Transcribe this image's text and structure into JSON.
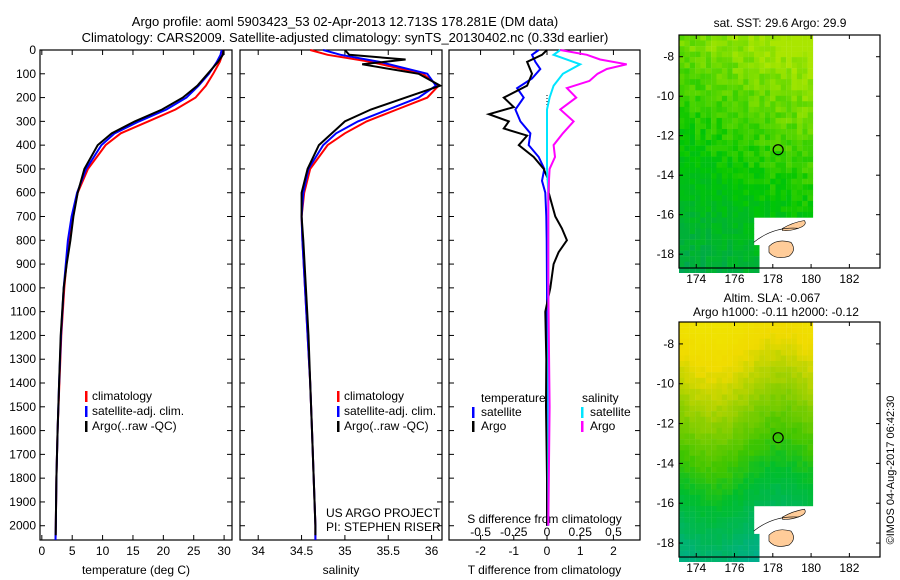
{
  "header": {
    "title_line1": "Argo profile: aoml 5903423_53 02-Apr-2013 12.713S 178.281E (DM data)",
    "title_line2": "Climatology: CARS2009. Satellite-adjusted climatology: synTS_20130402.nc (0.33d earlier)"
  },
  "footer": {
    "timestamp": "©IMOS 04-Aug-2017 06:42:30"
  },
  "colors": {
    "climatology": "#ff0000",
    "satellite": "#0000ff",
    "argo": "#000000",
    "sal_satellite": "#00e5ff",
    "sal_argo": "#ff00ff",
    "land": "#ffcc99"
  },
  "chart_data": [
    {
      "type": "line",
      "name": "temperature-profile",
      "xlabel": "temperature (deg C)",
      "ylabel": "",
      "xlim": [
        -0.3,
        31.3
      ],
      "ylim": [
        2060,
        0
      ],
      "xticks": [
        0,
        5,
        10,
        15,
        20,
        25,
        30
      ],
      "yticks": [
        0,
        100,
        200,
        300,
        400,
        500,
        600,
        700,
        800,
        900,
        1000,
        1100,
        1200,
        1300,
        1400,
        1500,
        1600,
        1700,
        1800,
        1900,
        2000
      ],
      "legend": [
        "climatology",
        "satellite-adj. clim.",
        "Argo(..raw -QC)"
      ],
      "legend_position": "lower-center",
      "series": [
        {
          "name": "climatology",
          "color": "#ff0000",
          "depth": [
            0,
            20,
            50,
            100,
            150,
            200,
            250,
            300,
            350,
            400,
            500,
            600,
            700,
            800,
            1000,
            1200,
            1400,
            1600,
            1800,
            2000,
            2060
          ],
          "values": [
            29.9,
            29.7,
            29.3,
            28.2,
            27.0,
            25.3,
            22.0,
            17.5,
            13.0,
            10.5,
            7.6,
            5.9,
            5.0,
            4.4,
            3.7,
            3.2,
            2.9,
            2.6,
            2.4,
            2.3,
            2.25
          ]
        },
        {
          "name": "satellite-adj. clim.",
          "color": "#0000ff",
          "depth": [
            0,
            20,
            50,
            100,
            150,
            200,
            250,
            300,
            350,
            400,
            500,
            600,
            700,
            800,
            1000,
            1200,
            1400,
            1600,
            1800,
            2000,
            2060
          ],
          "values": [
            29.6,
            29.4,
            28.8,
            27.5,
            25.8,
            23.8,
            20.5,
            16.0,
            12.0,
            9.8,
            7.3,
            5.8,
            4.9,
            4.3,
            3.6,
            3.15,
            2.85,
            2.6,
            2.4,
            2.3,
            2.25
          ]
        },
        {
          "name": "Argo(..raw -QC)",
          "color": "#000000",
          "depth": [
            0,
            20,
            50,
            100,
            150,
            200,
            250,
            300,
            350,
            400,
            500,
            600,
            700,
            800,
            900,
            1000,
            1200,
            1400,
            1600,
            1800,
            2000,
            2040
          ],
          "values": [
            29.9,
            29.8,
            29.0,
            27.3,
            25.6,
            23.2,
            19.8,
            15.3,
            11.5,
            9.2,
            7.0,
            5.9,
            5.2,
            4.7,
            4.1,
            3.6,
            3.1,
            2.85,
            2.6,
            2.4,
            2.3,
            2.28
          ]
        }
      ]
    },
    {
      "type": "line",
      "name": "salinity-profile",
      "xlabel": "salinity",
      "xlim": [
        33.79,
        36.12
      ],
      "ylim": [
        2060,
        0
      ],
      "xticks": [
        34,
        34.5,
        35,
        35.5,
        36
      ],
      "legend": [
        "climatology",
        "satellite-adj. clim.",
        "Argo(..raw -QC)"
      ],
      "annotation": [
        "US ARGO PROJECT",
        "PI: STEPHEN RISER"
      ],
      "series": [
        {
          "name": "climatology",
          "color": "#ff0000",
          "depth": [
            0,
            20,
            50,
            100,
            150,
            200,
            250,
            300,
            350,
            400,
            500,
            600,
            700,
            800,
            1000,
            1200,
            1400,
            1600,
            1800,
            2000,
            2060
          ],
          "values": [
            34.6,
            34.8,
            35.3,
            35.9,
            36.08,
            35.95,
            35.6,
            35.25,
            35.0,
            34.8,
            34.6,
            34.53,
            34.5,
            34.51,
            34.54,
            34.57,
            34.6,
            34.62,
            34.64,
            34.66,
            34.66
          ]
        },
        {
          "name": "satellite-adj. clim.",
          "color": "#0000ff",
          "depth": [
            0,
            20,
            50,
            100,
            150,
            200,
            250,
            300,
            350,
            400,
            500,
            600,
            700,
            800,
            1000,
            1200,
            1400,
            1600,
            1800,
            2000,
            2060
          ],
          "values": [
            34.75,
            34.95,
            35.4,
            35.95,
            36.05,
            35.85,
            35.5,
            35.15,
            34.9,
            34.75,
            34.58,
            34.52,
            34.5,
            34.51,
            34.54,
            34.57,
            34.6,
            34.62,
            34.64,
            34.66,
            34.66
          ]
        },
        {
          "name": "Argo(..raw -QC)",
          "color": "#000000",
          "depth": [
            0,
            20,
            40,
            60,
            100,
            150,
            200,
            250,
            300,
            350,
            400,
            500,
            600,
            700,
            800,
            1000,
            1200,
            1400,
            1600,
            1800,
            2000,
            2040
          ],
          "values": [
            35.0,
            35.05,
            35.7,
            35.2,
            35.85,
            36.1,
            35.7,
            35.3,
            35.0,
            34.85,
            34.7,
            34.57,
            34.5,
            34.5,
            34.52,
            34.55,
            34.58,
            34.6,
            34.62,
            34.64,
            34.66,
            34.66
          ]
        }
      ]
    },
    {
      "type": "line",
      "name": "difference-profile",
      "xlabel": "T difference from climatology",
      "xlabel2": "S difference from climatology",
      "xlim": [
        -2.95,
        2.8
      ],
      "ylim": [
        2060,
        0
      ],
      "xticks": [
        -2,
        -1,
        0,
        1,
        2
      ],
      "xticks2": [
        -0.5,
        -0.25,
        0,
        0.25,
        0.5
      ],
      "xticks2_labels": [
        "-0.5",
        "-0.25",
        "0",
        "0.25",
        "0.5"
      ],
      "legend_headers": [
        "temperature",
        "salinity"
      ],
      "legend": [
        "satellite",
        "Argo",
        "satellite",
        "Argo"
      ],
      "series": [
        {
          "name": "T satellite",
          "color": "#0000ff",
          "units": "T",
          "depth": [
            0,
            20,
            50,
            80,
            120,
            160,
            200,
            250,
            300,
            350,
            400,
            450,
            500,
            550,
            600,
            700,
            800,
            1000,
            1500,
            2000
          ],
          "values": [
            -0.25,
            -0.45,
            -0.35,
            -0.2,
            -0.45,
            -0.9,
            -0.7,
            -0.95,
            -0.8,
            -0.5,
            -0.55,
            -0.25,
            -0.08,
            -0.15,
            -0.05,
            -0.02,
            -0.01,
            0,
            0,
            0
          ]
        },
        {
          "name": "T Argo",
          "color": "#000000",
          "units": "T",
          "depth": [
            0,
            20,
            50,
            100,
            150,
            200,
            240,
            270,
            300,
            330,
            360,
            400,
            450,
            500,
            550,
            600,
            650,
            700,
            750,
            800,
            850,
            900,
            1000,
            1100,
            1300,
            1500,
            1800,
            2000
          ],
          "values": [
            0,
            -0.15,
            -0.6,
            -0.45,
            -0.6,
            -1.3,
            -1.0,
            -1.75,
            -1.15,
            -1.3,
            -0.6,
            -0.85,
            -0.4,
            -0.1,
            0.05,
            0.05,
            0.15,
            0.25,
            0.45,
            0.6,
            0.35,
            0.2,
            0.1,
            -0.05,
            -0.02,
            -0.03,
            0,
            0
          ]
        },
        {
          "name": "S satellite",
          "color": "#00e5ff",
          "units": "S",
          "depth": [
            0,
            20,
            60,
            100,
            150,
            200,
            250,
            300,
            400,
            500,
            600,
            800,
            1000,
            1500,
            2000
          ],
          "values": [
            0.1,
            0.05,
            0.25,
            0.12,
            0.05,
            0.02,
            0.0,
            0.0,
            0.0,
            0.0,
            0.01,
            0.01,
            0.01,
            0.01,
            0.01
          ]
        },
        {
          "name": "S Argo",
          "color": "#ff00ff",
          "units": "S",
          "depth": [
            0,
            20,
            40,
            60,
            80,
            100,
            130,
            160,
            200,
            250,
            300,
            350,
            400,
            450,
            500,
            600,
            800,
            1000,
            1500,
            2000
          ],
          "values": [
            0.1,
            0.3,
            0.4,
            0.6,
            0.45,
            0.38,
            0.32,
            0.15,
            0.22,
            0.1,
            0.2,
            0.12,
            0.05,
            0.06,
            0.02,
            0.01,
            0.01,
            0.01,
            0.02,
            0.01
          ]
        }
      ]
    },
    {
      "type": "heatmap",
      "name": "sst-map",
      "title": "sat. SST: 29.6 Argo: 29.9",
      "xlim": [
        173.1,
        183.6
      ],
      "ylim": [
        -18.7,
        -6.9
      ],
      "xticks": [
        174,
        176,
        178,
        180,
        182
      ],
      "yticks": [
        -8,
        -10,
        -12,
        -14,
        -16,
        -18
      ],
      "marker": {
        "lon": 178.28,
        "lat": -12.71
      }
    },
    {
      "type": "heatmap",
      "name": "sla-map",
      "title": "Altim. SLA: -0.067",
      "subtitle": "Argo h1000: -0.11 h2000: -0.12",
      "xlim": [
        173.1,
        183.6
      ],
      "ylim": [
        -18.7,
        -6.9
      ],
      "xticks": [
        174,
        176,
        178,
        180,
        182
      ],
      "yticks": [
        -8,
        -10,
        -12,
        -14,
        -16,
        -18
      ],
      "marker": {
        "lon": 178.28,
        "lat": -12.71
      }
    }
  ]
}
